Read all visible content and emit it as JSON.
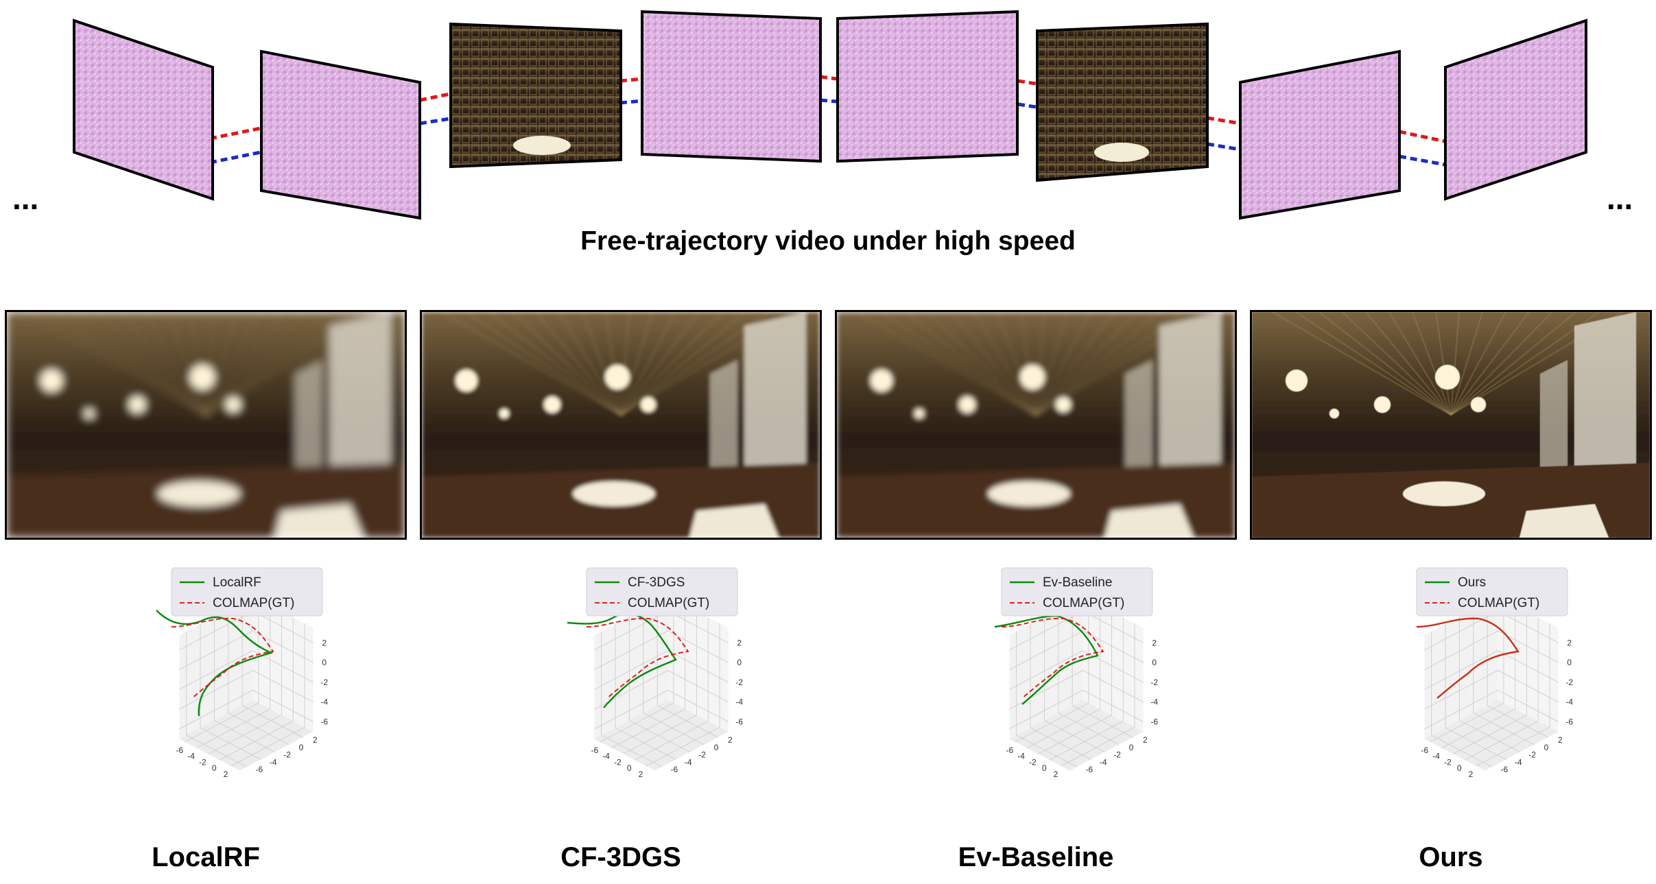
{
  "header": {
    "ellipsis_left": "...",
    "ellipsis_right": "...",
    "caption": "Free-trajectory video under high speed"
  },
  "colors": {
    "link_red": "#e01818",
    "link_blue": "#1a2cc8",
    "pred_green": "#0a8a0a",
    "gt_red": "#e02020",
    "ours_overlap": "#b84010"
  },
  "methods": [
    {
      "name": "LocalRF",
      "legend": [
        "LocalRF",
        "COLMAP(GT)"
      ],
      "z_ticks": [
        "2",
        "0",
        "-2",
        "-4",
        "-6"
      ],
      "y_ticks": [
        "2",
        "0",
        "-2",
        "-4",
        "-6"
      ],
      "x_ticks": [
        "-6",
        "-4",
        "-2",
        "0",
        "2"
      ]
    },
    {
      "name": "CF-3DGS",
      "legend": [
        "CF-3DGS",
        "COLMAP(GT)"
      ],
      "z_ticks": [
        "2",
        "0",
        "-2",
        "-4",
        "-6"
      ],
      "y_ticks": [
        "2",
        "0",
        "-2",
        "-4",
        "-6"
      ],
      "x_ticks": [
        "-6",
        "-4",
        "-2",
        "0",
        "2"
      ]
    },
    {
      "name": "Ev-Baseline",
      "legend": [
        "Ev-Baseline",
        "COLMAP(GT)"
      ],
      "z_ticks": [
        "2",
        "0",
        "-2",
        "-4",
        "-6"
      ],
      "y_ticks": [
        "2",
        "0",
        "-2",
        "-4",
        "-6"
      ],
      "x_ticks": [
        "-6",
        "-4",
        "-2",
        "0",
        "2"
      ]
    },
    {
      "name": "Ours",
      "legend": [
        "Ours",
        "COLMAP(GT)"
      ],
      "z_ticks": [
        "2",
        "0",
        "-2",
        "-4",
        "-6"
      ],
      "y_ticks": [
        "2",
        "0",
        "-2",
        "-4",
        "-6"
      ],
      "x_ticks": [
        "-6",
        "-4",
        "-2",
        "0",
        "2"
      ]
    }
  ]
}
